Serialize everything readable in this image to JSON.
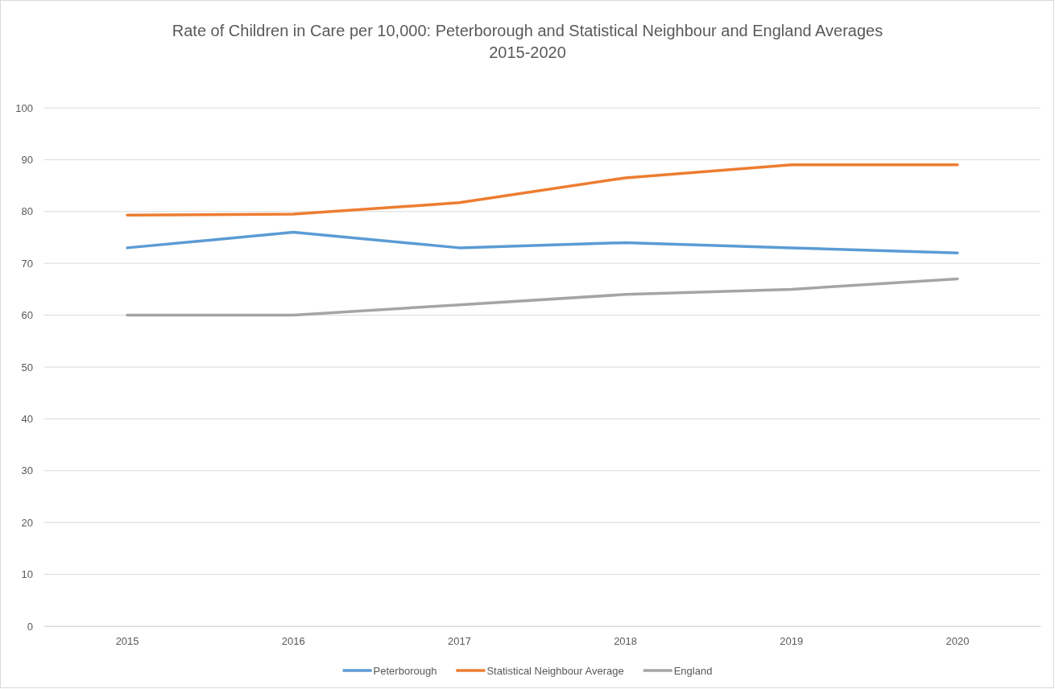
{
  "chart_data": {
    "type": "line",
    "title": "Rate of Children in Care per 10,000: Peterborough and Statistical Neighbour and England Averages\n2015-2020",
    "categories": [
      "2015",
      "2016",
      "2017",
      "2018",
      "2019",
      "2020"
    ],
    "series": [
      {
        "name": "Peterborough",
        "color": "#5b9bd5",
        "values": [
          73,
          76,
          73,
          74,
          73,
          72
        ]
      },
      {
        "name": "Statistical Neighbour Average",
        "color": "#ed7d31",
        "values": [
          79.3,
          79.5,
          81.7,
          86.5,
          89,
          89
        ]
      },
      {
        "name": "England",
        "color": "#a5a5a5",
        "values": [
          60,
          60,
          62,
          64,
          65,
          67
        ]
      }
    ],
    "ylim": [
      0,
      100
    ],
    "yticks": [
      0,
      10,
      20,
      30,
      40,
      50,
      60,
      70,
      80,
      90,
      100
    ],
    "grid": "y",
    "legend": "bottom",
    "marker": "none",
    "line_style": "solid"
  }
}
